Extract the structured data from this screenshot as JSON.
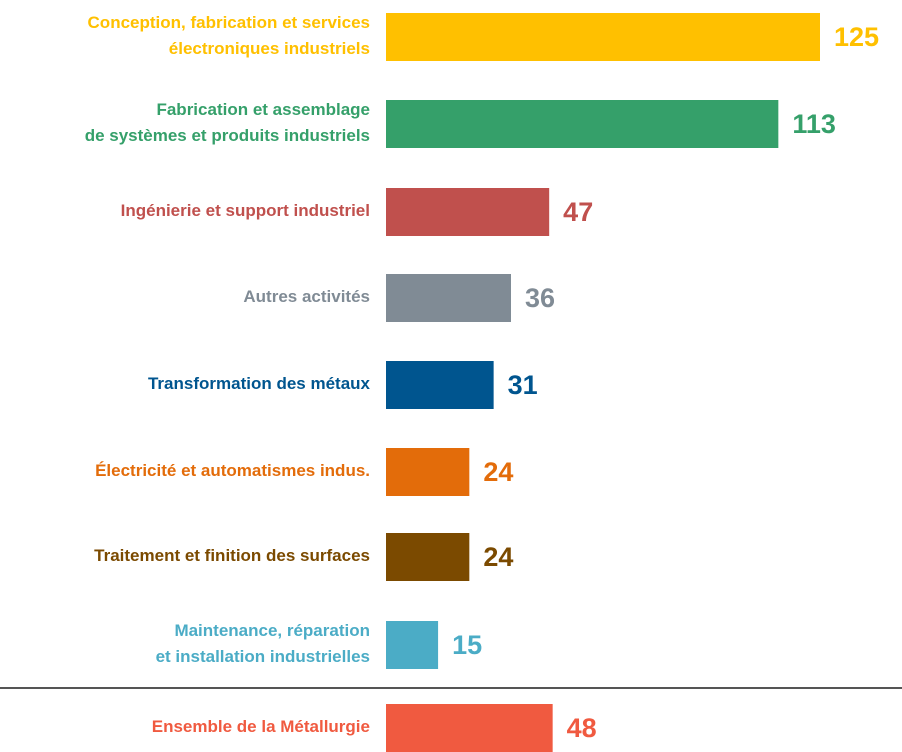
{
  "chart_data": {
    "type": "bar",
    "orientation": "horizontal",
    "categories": [
      "Conception, fabrication et services\nélectroniques industriels",
      "Fabrication et assemblage\nde systèmes et produits industriels",
      "Ingénierie et support industriel",
      "Autres activités",
      "Transformation des métaux",
      "Électricité et automatismes indus.",
      "Traitement et finition des surfaces",
      "Maintenance, réparation\net installation industrielles",
      "Ensemble de la Métallurgie"
    ],
    "values": [
      125,
      113,
      47,
      36,
      31,
      24,
      24,
      15,
      48
    ],
    "colors": [
      "#ffc000",
      "#35a06a",
      "#c0504d",
      "#808b95",
      "#00558f",
      "#e36c0a",
      "#7b4a00",
      "#4bacc6",
      "#f05a40"
    ]
  }
}
